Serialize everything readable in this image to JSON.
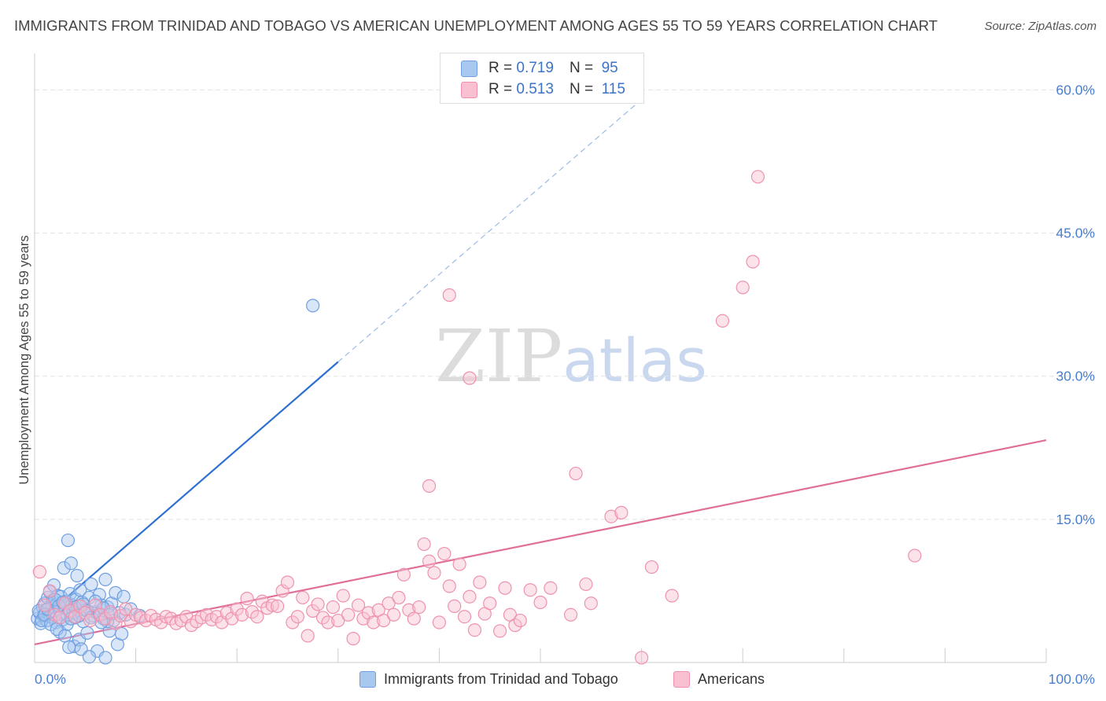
{
  "title": "IMMIGRANTS FROM TRINIDAD AND TOBAGO VS AMERICAN UNEMPLOYMENT AMONG AGES 55 TO 59 YEARS CORRELATION CHART",
  "source": "Source: ZipAtlas.com",
  "watermark": {
    "zip": "ZIP",
    "atlas": "atlas"
  },
  "legend": {
    "r_label": "R =",
    "n_label": "N =",
    "series": [
      {
        "name": "Immigrants from Trinidad and Tobago",
        "r": "0.719",
        "n": "95",
        "color": "#a8c8f0",
        "edge": "#6f9fe0"
      },
      {
        "name": "Americans",
        "r": "0.513",
        "n": "115",
        "color": "#f8c0d0",
        "edge": "#ee92ae"
      }
    ]
  },
  "chart_data": {
    "type": "scatter",
    "title": "IMMIGRANTS FROM TRINIDAD AND TOBAGO VS AMERICAN UNEMPLOYMENT AMONG AGES 55 TO 59 YEARS CORRELATION CHART",
    "xlabel": "",
    "ylabel": "Unemployment Among Ages 55 to 59 years",
    "xlim": [
      0,
      100
    ],
    "ylim": [
      0,
      63
    ],
    "x_tick_labels": [
      "0.0%",
      "100.0%"
    ],
    "y_ticks": [
      15,
      30,
      45,
      60
    ],
    "y_tick_labels": [
      "15.0%",
      "30.0%",
      "45.0%",
      "60.0%"
    ],
    "grid": true,
    "legend_position": "top-center",
    "series": [
      {
        "name": "Immigrants from Trinidad and Tobago",
        "color": "#6f9fe0",
        "trend": {
          "x0": 0,
          "y0": 3.9,
          "x1": 30,
          "y1": 31.5,
          "dashed_to_x": 60,
          "dashed_to_y": 59,
          "color": "#2e6fd2"
        },
        "points": [
          [
            0.3,
            4.6
          ],
          [
            0.5,
            5.2
          ],
          [
            0.6,
            4.1
          ],
          [
            0.8,
            5.8
          ],
          [
            0.9,
            4.9
          ],
          [
            1.0,
            6.2
          ],
          [
            1.1,
            5.5
          ],
          [
            1.2,
            4.4
          ],
          [
            1.3,
            6.8
          ],
          [
            1.4,
            5.1
          ],
          [
            1.5,
            7.4
          ],
          [
            1.6,
            4.8
          ],
          [
            1.7,
            5.9
          ],
          [
            1.8,
            6.5
          ],
          [
            1.9,
            8.1
          ],
          [
            2.0,
            5.3
          ],
          [
            2.1,
            4.2
          ],
          [
            2.2,
            6.1
          ],
          [
            2.3,
            7.0
          ],
          [
            2.4,
            5.6
          ],
          [
            2.5,
            3.2
          ],
          [
            2.6,
            6.9
          ],
          [
            2.7,
            5.0
          ],
          [
            2.8,
            4.5
          ],
          [
            2.9,
            9.9
          ],
          [
            3.0,
            5.7
          ],
          [
            3.1,
            6.4
          ],
          [
            3.2,
            4.0
          ],
          [
            3.3,
            12.8
          ],
          [
            3.4,
            5.4
          ],
          [
            3.5,
            7.2
          ],
          [
            3.6,
            10.4
          ],
          [
            3.7,
            6.0
          ],
          [
            3.8,
            5.2
          ],
          [
            3.9,
            1.7
          ],
          [
            4.0,
            4.7
          ],
          [
            4.1,
            6.6
          ],
          [
            4.2,
            9.1
          ],
          [
            4.3,
            5.9
          ],
          [
            4.4,
            2.4
          ],
          [
            4.5,
            7.6
          ],
          [
            4.6,
            5.1
          ],
          [
            4.7,
            6.3
          ],
          [
            4.8,
            4.3
          ],
          [
            5.0,
            5.5
          ],
          [
            5.2,
            3.1
          ],
          [
            5.4,
            6.8
          ],
          [
            5.6,
            8.2
          ],
          [
            5.8,
            4.9
          ],
          [
            6.0,
            5.3
          ],
          [
            6.2,
            1.2
          ],
          [
            6.4,
            7.1
          ],
          [
            6.6,
            6.0
          ],
          [
            6.8,
            4.6
          ],
          [
            7.0,
            8.7
          ],
          [
            7.2,
            5.8
          ],
          [
            7.4,
            3.3
          ],
          [
            7.6,
            6.2
          ],
          [
            7.8,
            4.4
          ],
          [
            8.0,
            7.3
          ],
          [
            8.2,
            1.9
          ],
          [
            8.4,
            5.2
          ],
          [
            8.6,
            3.0
          ],
          [
            8.8,
            6.9
          ],
          [
            9.0,
            5.0
          ],
          [
            0.4,
            5.4
          ],
          [
            0.7,
            4.4
          ],
          [
            1.0,
            5.0
          ],
          [
            1.3,
            5.6
          ],
          [
            1.6,
            4.0
          ],
          [
            2.0,
            6.6
          ],
          [
            2.4,
            5.9
          ],
          [
            2.8,
            6.3
          ],
          [
            3.2,
            5.0
          ],
          [
            3.6,
            4.6
          ],
          [
            4.0,
            5.8
          ],
          [
            4.4,
            4.9
          ],
          [
            4.8,
            6.1
          ],
          [
            5.2,
            5.4
          ],
          [
            5.6,
            4.7
          ],
          [
            6.0,
            6.4
          ],
          [
            6.4,
            5.0
          ],
          [
            6.8,
            5.7
          ],
          [
            7.2,
            4.3
          ],
          [
            7.6,
            5.1
          ],
          [
            2.2,
            3.5
          ],
          [
            3.0,
            2.8
          ],
          [
            4.6,
            1.4
          ],
          [
            5.4,
            0.6
          ],
          [
            3.4,
            1.6
          ],
          [
            9.5,
            5.6
          ],
          [
            10.4,
            4.9
          ],
          [
            7.0,
            0.5
          ],
          [
            27.5,
            37.4
          ],
          [
            6.6,
            4.2
          ]
        ]
      },
      {
        "name": "Americans",
        "color": "#ee92ae",
        "trend": {
          "x0": 0,
          "y0": 1.9,
          "x1": 100,
          "y1": 23.3,
          "color": "#e06f99"
        },
        "points": [
          [
            0.5,
            9.5
          ],
          [
            1.0,
            6.0
          ],
          [
            1.5,
            7.5
          ],
          [
            2.0,
            5.0
          ],
          [
            2.5,
            4.7
          ],
          [
            3.0,
            6.2
          ],
          [
            3.5,
            5.4
          ],
          [
            4.0,
            4.8
          ],
          [
            4.5,
            5.9
          ],
          [
            5.0,
            5.2
          ],
          [
            5.5,
            4.4
          ],
          [
            6.0,
            6.0
          ],
          [
            6.5,
            5.0
          ],
          [
            7.0,
            4.6
          ],
          [
            7.5,
            5.3
          ],
          [
            8.0,
            4.1
          ],
          [
            8.5,
            4.9
          ],
          [
            9.0,
            5.6
          ],
          [
            9.5,
            4.3
          ],
          [
            10.0,
            5.0
          ],
          [
            10.5,
            4.7
          ],
          [
            11.0,
            4.4
          ],
          [
            11.5,
            4.9
          ],
          [
            12.0,
            4.5
          ],
          [
            12.5,
            4.2
          ],
          [
            13.0,
            4.8
          ],
          [
            13.5,
            4.6
          ],
          [
            14.0,
            4.1
          ],
          [
            14.5,
            4.4
          ],
          [
            15.0,
            4.8
          ],
          [
            15.5,
            3.9
          ],
          [
            16.0,
            4.3
          ],
          [
            16.5,
            4.7
          ],
          [
            17.0,
            5.0
          ],
          [
            17.5,
            4.5
          ],
          [
            18.0,
            4.8
          ],
          [
            18.5,
            4.2
          ],
          [
            19.0,
            5.2
          ],
          [
            19.5,
            4.6
          ],
          [
            20.0,
            5.6
          ],
          [
            20.5,
            5.0
          ],
          [
            21.0,
            6.7
          ],
          [
            21.5,
            5.3
          ],
          [
            22.0,
            4.8
          ],
          [
            22.5,
            6.4
          ],
          [
            23.0,
            5.7
          ],
          [
            23.5,
            6.0
          ],
          [
            24.0,
            5.9
          ],
          [
            24.5,
            7.5
          ],
          [
            25.0,
            8.4
          ],
          [
            25.5,
            4.2
          ],
          [
            26.0,
            4.8
          ],
          [
            26.5,
            6.8
          ],
          [
            27.0,
            2.8
          ],
          [
            27.5,
            5.4
          ],
          [
            28.0,
            6.1
          ],
          [
            28.5,
            4.7
          ],
          [
            29.0,
            4.2
          ],
          [
            29.5,
            5.8
          ],
          [
            30.0,
            4.4
          ],
          [
            30.5,
            7.0
          ],
          [
            31.0,
            5.0
          ],
          [
            31.5,
            2.5
          ],
          [
            32.0,
            6.0
          ],
          [
            32.5,
            4.6
          ],
          [
            33.0,
            5.2
          ],
          [
            33.5,
            4.2
          ],
          [
            34.0,
            5.5
          ],
          [
            34.5,
            4.4
          ],
          [
            35.0,
            6.2
          ],
          [
            35.5,
            5.0
          ],
          [
            36.0,
            6.8
          ],
          [
            36.5,
            9.2
          ],
          [
            37.0,
            5.5
          ],
          [
            37.5,
            4.6
          ],
          [
            38.0,
            5.8
          ],
          [
            38.5,
            12.4
          ],
          [
            39.0,
            10.6
          ],
          [
            39.5,
            9.4
          ],
          [
            40.0,
            4.2
          ],
          [
            40.5,
            11.4
          ],
          [
            41.0,
            8.0
          ],
          [
            41.5,
            5.9
          ],
          [
            42.0,
            10.3
          ],
          [
            42.5,
            4.8
          ],
          [
            43.0,
            6.9
          ],
          [
            43.5,
            3.4
          ],
          [
            44.0,
            8.4
          ],
          [
            44.5,
            5.1
          ],
          [
            45.0,
            6.2
          ],
          [
            46.0,
            3.3
          ],
          [
            46.5,
            7.8
          ],
          [
            47.0,
            5.0
          ],
          [
            47.5,
            3.9
          ],
          [
            48.0,
            4.4
          ],
          [
            49.0,
            7.6
          ],
          [
            50.0,
            6.3
          ],
          [
            51.0,
            7.8
          ],
          [
            53.0,
            5.0
          ],
          [
            53.5,
            19.8
          ],
          [
            54.5,
            8.2
          ],
          [
            55.0,
            6.2
          ],
          [
            57.0,
            15.3
          ],
          [
            58.0,
            15.7
          ],
          [
            60.0,
            0.5
          ],
          [
            61.0,
            10.0
          ],
          [
            63.0,
            7.0
          ],
          [
            68.0,
            35.8
          ],
          [
            70.0,
            39.3
          ],
          [
            71.0,
            42.0
          ],
          [
            71.5,
            50.9
          ],
          [
            87.0,
            11.2
          ],
          [
            43.0,
            29.8
          ],
          [
            41.0,
            38.5
          ],
          [
            39.0,
            18.5
          ]
        ]
      }
    ]
  }
}
